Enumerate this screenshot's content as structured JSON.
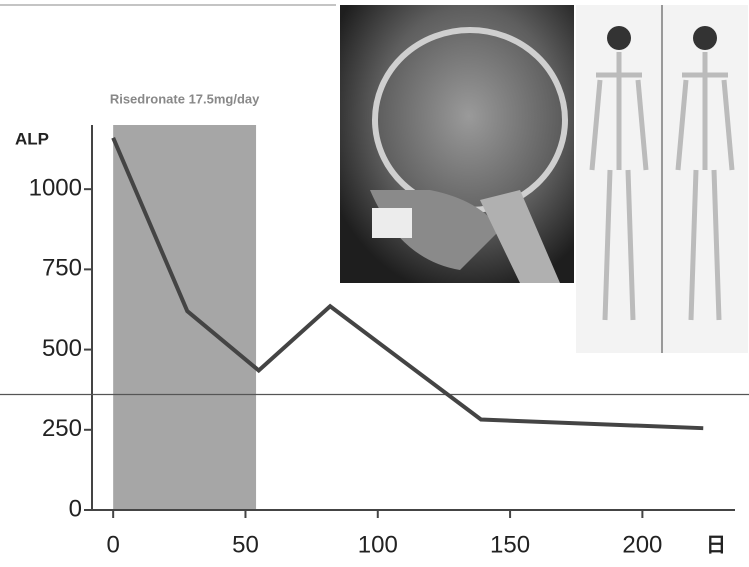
{
  "chart_data": {
    "type": "line",
    "y_label": "ALP",
    "x_label": "日",
    "x": [
      0,
      28,
      55,
      82,
      139,
      223
    ],
    "values": [
      1160,
      620,
      435,
      635,
      282,
      255
    ],
    "color": "#444444",
    "xlim": [
      -8,
      235
    ],
    "xticks": [
      0,
      50,
      100,
      150,
      200
    ],
    "ylim": [
      0,
      1200
    ],
    "yticks": [
      0,
      250,
      500,
      750,
      1000
    ],
    "shade": {
      "start": 0,
      "end": 54,
      "label": "Risedronate 17.5mg/day",
      "color": "#a6a6a6"
    },
    "reference_line": 360
  }
}
